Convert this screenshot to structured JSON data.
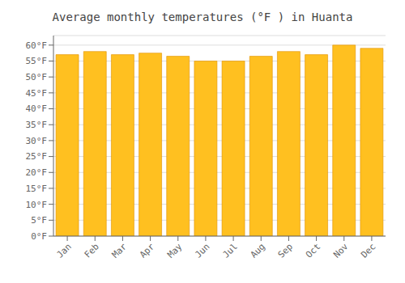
{
  "chart_data": {
    "type": "bar",
    "title": "Average monthly temperatures (°F ) in Huanta",
    "categories": [
      "Jan",
      "Feb",
      "Mar",
      "Apr",
      "May",
      "Jun",
      "Jul",
      "Aug",
      "Sep",
      "Oct",
      "Nov",
      "Dec"
    ],
    "values": [
      57.0,
      58.0,
      57.0,
      57.5,
      56.5,
      55.0,
      55.0,
      56.5,
      58.0,
      57.0,
      60.0,
      59.0
    ],
    "color": "#FFC020",
    "ylim": [
      0,
      63
    ],
    "yticks": [
      {
        "value": 0,
        "label": "0°F"
      },
      {
        "value": 5,
        "label": "5°F"
      },
      {
        "value": 10,
        "label": "10°F"
      },
      {
        "value": 15,
        "label": "15°F"
      },
      {
        "value": 20,
        "label": "20°F"
      },
      {
        "value": 25,
        "label": "25°F"
      },
      {
        "value": 30,
        "label": "30°F"
      },
      {
        "value": 35,
        "label": "35°F"
      },
      {
        "value": 40,
        "label": "40°F"
      },
      {
        "value": 45,
        "label": "45°F"
      },
      {
        "value": 50,
        "label": "50°F"
      },
      {
        "value": 55,
        "label": "55°F"
      },
      {
        "value": 60,
        "label": "60°F"
      }
    ],
    "grid": true
  }
}
